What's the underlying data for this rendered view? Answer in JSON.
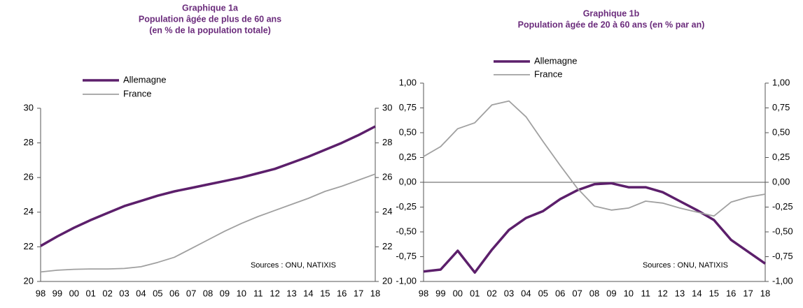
{
  "chart_data": [
    {
      "type": "line",
      "title": "Graphique 1a",
      "subtitle": [
        "Population âgée de plus de 60 ans",
        "(en % de la population totale)"
      ],
      "categories": [
        "98",
        "99",
        "00",
        "01",
        "02",
        "03",
        "04",
        "05",
        "06",
        "07",
        "08",
        "09",
        "10",
        "11",
        "12",
        "13",
        "14",
        "15",
        "16",
        "17",
        "18"
      ],
      "series": [
        {
          "name": "Allemagne",
          "color": "#5c1f6b",
          "values": [
            22.05,
            22.6,
            23.1,
            23.55,
            23.95,
            24.35,
            24.65,
            24.95,
            25.2,
            25.4,
            25.6,
            25.8,
            26.0,
            26.25,
            26.5,
            26.85,
            27.2,
            27.6,
            28.0,
            28.45,
            28.95
          ]
        },
        {
          "name": "France",
          "color": "#a0a0a0",
          "values": [
            20.55,
            20.65,
            20.7,
            20.72,
            20.72,
            20.75,
            20.85,
            21.1,
            21.4,
            21.9,
            22.4,
            22.9,
            23.35,
            23.75,
            24.1,
            24.45,
            24.8,
            25.2,
            25.5,
            25.85,
            26.2
          ]
        }
      ],
      "ylim": [
        20,
        30
      ],
      "yticks": [
        20,
        22,
        24,
        26,
        28,
        30
      ],
      "y2lim": [
        20,
        30
      ],
      "y2ticks": [
        20,
        22,
        24,
        26,
        28,
        30
      ],
      "annotation": "Sources : ONU, NATIXIS",
      "legend": "upper left"
    },
    {
      "type": "line",
      "title": "Graphique 1b",
      "subtitle": [
        "Population âgée de 20 à 60 ans (en % par an)"
      ],
      "categories": [
        "98",
        "99",
        "00",
        "01",
        "02",
        "03",
        "04",
        "05",
        "06",
        "07",
        "08",
        "09",
        "10",
        "11",
        "12",
        "13",
        "14",
        "15",
        "16",
        "17",
        "18"
      ],
      "series": [
        {
          "name": "Allemagne",
          "color": "#5c1f6b",
          "values": [
            -0.9,
            -0.88,
            -0.69,
            -0.91,
            -0.68,
            -0.48,
            -0.36,
            -0.29,
            -0.17,
            -0.08,
            -0.02,
            -0.01,
            -0.05,
            -0.05,
            -0.1,
            -0.19,
            -0.28,
            -0.38,
            -0.58,
            -0.7,
            -0.82
          ]
        },
        {
          "name": "France",
          "color": "#a0a0a0",
          "values": [
            0.26,
            0.36,
            0.54,
            0.6,
            0.78,
            0.82,
            0.66,
            0.41,
            0.17,
            -0.06,
            -0.24,
            -0.28,
            -0.26,
            -0.19,
            -0.21,
            -0.26,
            -0.3,
            -0.34,
            -0.2,
            -0.15,
            -0.12
          ]
        }
      ],
      "ylim": [
        -1,
        1
      ],
      "yticks": [
        {
          "value": -1,
          "label": "-1,00"
        },
        {
          "value": -0.75,
          "label": "-0,75"
        },
        {
          "value": -0.5,
          "label": "-0,50"
        },
        {
          "value": -0.25,
          "label": "-0,25"
        },
        {
          "value": 0,
          "label": "0,00"
        },
        {
          "value": 0.25,
          "label": "0,25"
        },
        {
          "value": 0.5,
          "label": "0,50"
        },
        {
          "value": 0.75,
          "label": "0,75"
        },
        {
          "value": 1,
          "label": "1,00"
        }
      ],
      "y2lim": [
        -1,
        1
      ],
      "y2ticks": [
        {
          "value": -1,
          "label": "-1,00"
        },
        {
          "value": -0.75,
          "label": "-0,75"
        },
        {
          "value": -0.5,
          "label": "-0,50"
        },
        {
          "value": -0.25,
          "label": "-0,25"
        },
        {
          "value": 0,
          "label": "0,00"
        },
        {
          "value": 0.25,
          "label": "0,25"
        },
        {
          "value": 0.5,
          "label": "0,50"
        },
        {
          "value": 0.75,
          "label": "0,75"
        },
        {
          "value": 1,
          "label": "1,00"
        }
      ],
      "annotation": "Sources : ONU, NATIXIS",
      "legend": "upper left"
    }
  ]
}
